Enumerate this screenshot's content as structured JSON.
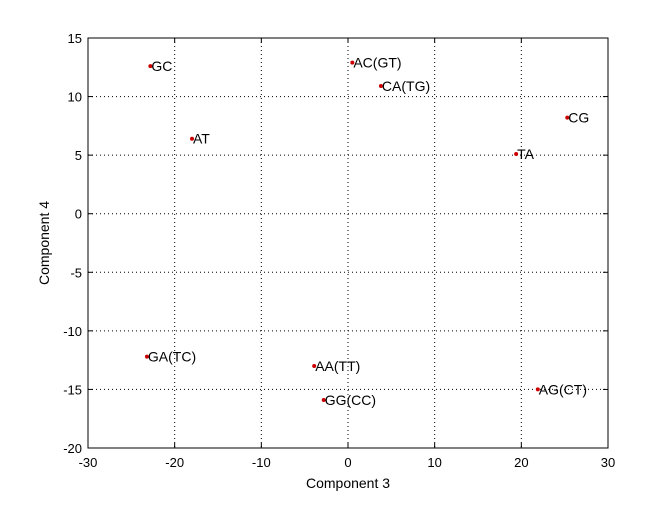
{
  "chart_data": {
    "type": "scatter",
    "xlabel": "Component 3",
    "ylabel": "Component 4",
    "xlim": [
      -30,
      30
    ],
    "ylim": [
      -20,
      15
    ],
    "xticks": [
      -30,
      -20,
      -10,
      0,
      10,
      20,
      30
    ],
    "yticks": [
      -20,
      -15,
      -10,
      -5,
      0,
      5,
      10,
      15
    ],
    "grid": true,
    "grid_style": "dotted",
    "marker_color": "#cc0000",
    "points": [
      {
        "label": "GC",
        "x": -22.8,
        "y": 12.6
      },
      {
        "label": "AC(GT)",
        "x": 0.5,
        "y": 12.9
      },
      {
        "label": "CA(TG)",
        "x": 3.8,
        "y": 10.9
      },
      {
        "label": "CG",
        "x": 25.3,
        "y": 8.2
      },
      {
        "label": "AT",
        "x": -18.0,
        "y": 6.4
      },
      {
        "label": "TA",
        "x": 19.4,
        "y": 5.1
      },
      {
        "label": "GA(TC)",
        "x": -23.2,
        "y": -12.2
      },
      {
        "label": "AA(TT)",
        "x": -3.9,
        "y": -13.0
      },
      {
        "label": "GG(CC)",
        "x": -2.8,
        "y": -15.9
      },
      {
        "label": "AG(CT)",
        "x": 21.9,
        "y": -15.0
      }
    ]
  }
}
